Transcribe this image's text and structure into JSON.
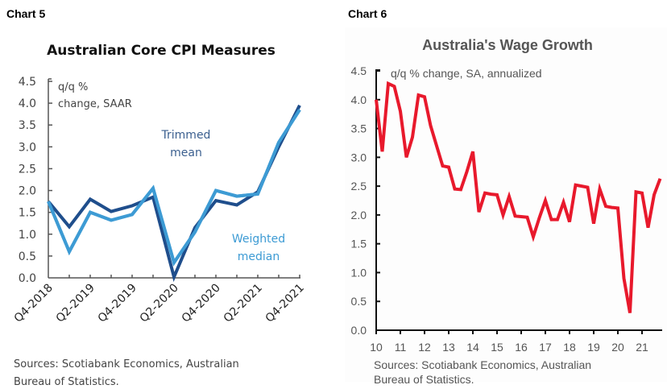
{
  "chart_data": [
    {
      "label": "Chart 5",
      "type": "line",
      "title": "Australian Core CPI Measures",
      "unit_note": [
        "q/q %",
        "change, SAAR"
      ],
      "xlabel": "",
      "ylabel": "",
      "ylim": [
        0,
        4.5
      ],
      "yticks": [
        "0.0",
        "0.5",
        "1.0",
        "1.5",
        "2.0",
        "2.5",
        "3.0",
        "3.5",
        "4.0",
        "4.5"
      ],
      "ytick_values": [
        0,
        0.5,
        1,
        1.5,
        2,
        2.5,
        3,
        3.5,
        4,
        4.5
      ],
      "x": [
        "Q4-2018",
        "Q1-2019",
        "Q2-2019",
        "Q3-2019",
        "Q4-2019",
        "Q1-2020",
        "Q2-2020",
        "Q3-2020",
        "Q4-2020",
        "Q1-2021",
        "Q2-2021",
        "Q3-2021",
        "Q4-2021"
      ],
      "xtick_labels": [
        "Q4-2018",
        "Q2-2019",
        "Q4-2019",
        "Q2-2020",
        "Q4-2020",
        "Q2-2021",
        "Q4-2021"
      ],
      "series": [
        {
          "name": "Trimmed mean",
          "label_lines": [
            "Trimmed",
            "mean"
          ],
          "color": "#1f4e8c",
          "values": [
            1.75,
            1.17,
            1.8,
            1.52,
            1.65,
            1.85,
            0.02,
            1.15,
            1.77,
            1.67,
            1.97,
            3.0,
            3.95
          ]
        },
        {
          "name": "Weighted median",
          "label_lines": [
            "Weighted",
            "median"
          ],
          "color": "#3d9bd4",
          "values": [
            1.75,
            0.6,
            1.5,
            1.32,
            1.45,
            2.05,
            0.35,
            1.05,
            2.0,
            1.87,
            1.92,
            3.1,
            3.85
          ]
        }
      ],
      "source": [
        "Sources: Scotiabank Economics, Australian",
        "Bureau of Statistics."
      ]
    },
    {
      "label": "Chart 6",
      "type": "line",
      "title": "Australia's Wage Growth",
      "unit_note": "q/q % change, SA, annualized",
      "xlabel": "",
      "ylabel": "",
      "ylim": [
        0,
        4.5
      ],
      "xlim": [
        10,
        21.83
      ],
      "yticks": [
        "0.0",
        "0.5",
        "1.0",
        "1.5",
        "2.0",
        "2.5",
        "3.0",
        "3.5",
        "4.0",
        "4.5"
      ],
      "ytick_values": [
        0,
        0.5,
        1,
        1.5,
        2,
        2.5,
        3,
        3.5,
        4,
        4.5
      ],
      "xtick_labels": [
        "10",
        "11",
        "12",
        "13",
        "14",
        "15",
        "16",
        "17",
        "18",
        "19",
        "20",
        "21"
      ],
      "xtick_values": [
        10,
        11,
        12,
        13,
        14,
        15,
        16,
        17,
        18,
        19,
        20,
        21
      ],
      "series": [
        {
          "name": "Wage growth",
          "color": "#e8192c",
          "x": [
            10.0,
            10.25,
            10.5,
            10.75,
            11.0,
            11.25,
            11.5,
            11.75,
            12.0,
            12.25,
            12.5,
            12.75,
            13.0,
            13.25,
            13.5,
            13.75,
            14.0,
            14.25,
            14.5,
            14.75,
            15.0,
            15.25,
            15.5,
            15.75,
            16.0,
            16.25,
            16.5,
            16.75,
            17.0,
            17.25,
            17.5,
            17.75,
            18.0,
            18.25,
            18.5,
            18.75,
            19.0,
            19.25,
            19.5,
            19.75,
            20.0,
            20.25,
            20.5,
            20.75,
            21.0,
            21.25,
            21.5,
            21.75
          ],
          "values": [
            4.0,
            3.1,
            4.28,
            4.23,
            3.8,
            3.0,
            3.35,
            4.08,
            4.05,
            3.55,
            3.2,
            2.85,
            2.83,
            2.45,
            2.44,
            2.75,
            3.1,
            2.05,
            2.38,
            2.36,
            2.35,
            2.0,
            2.32,
            1.98,
            1.97,
            1.96,
            1.62,
            1.95,
            2.25,
            1.92,
            1.92,
            2.22,
            1.88,
            2.52,
            2.5,
            2.48,
            1.85,
            2.45,
            2.15,
            2.13,
            2.12,
            0.9,
            0.3,
            2.4,
            2.38,
            1.78,
            2.35,
            2.63
          ]
        }
      ],
      "source": [
        "Sources: Scotiabank Economics, Australian",
        "Bureau of Statistics."
      ]
    }
  ]
}
